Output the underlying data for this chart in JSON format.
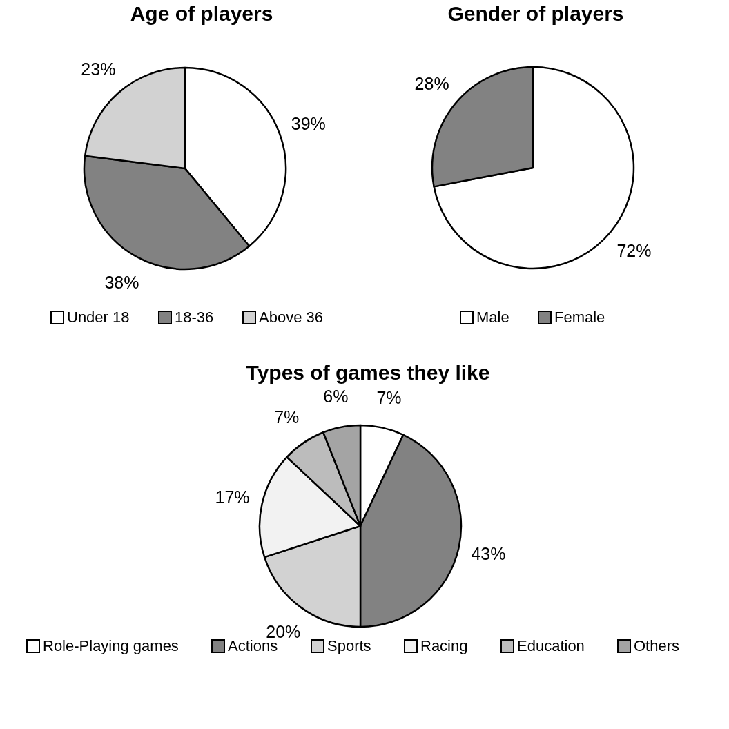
{
  "chart_data": [
    {
      "type": "pie",
      "title": "Age of players",
      "categories": [
        "Under 18",
        "18-36",
        "Above 36"
      ],
      "values": [
        39,
        38,
        23
      ],
      "colors": [
        "#ffffff",
        "#828282",
        "#d2d2d2"
      ],
      "value_labels": [
        "39%",
        "38%",
        "23%"
      ],
      "legend": "bottom"
    },
    {
      "type": "pie",
      "title": "Gender of players",
      "categories": [
        "Male",
        "Female"
      ],
      "values": [
        72,
        28
      ],
      "colors": [
        "#ffffff",
        "#828282"
      ],
      "value_labels": [
        "72%",
        "28%"
      ],
      "legend": "bottom"
    },
    {
      "type": "pie",
      "title": "Types of games they like",
      "categories": [
        "Role-Playing games",
        "Actions",
        "Sports",
        "Racing",
        "Education",
        "Others"
      ],
      "values": [
        7,
        43,
        20,
        17,
        7,
        6
      ],
      "colors": [
        "#ffffff",
        "#828282",
        "#d2d2d2",
        "#f2f2f2",
        "#bcbcbc",
        "#a4a4a4"
      ],
      "value_labels": [
        "7%",
        "43%",
        "20%",
        "17%",
        "7%",
        "6%"
      ],
      "legend": "bottom"
    }
  ]
}
